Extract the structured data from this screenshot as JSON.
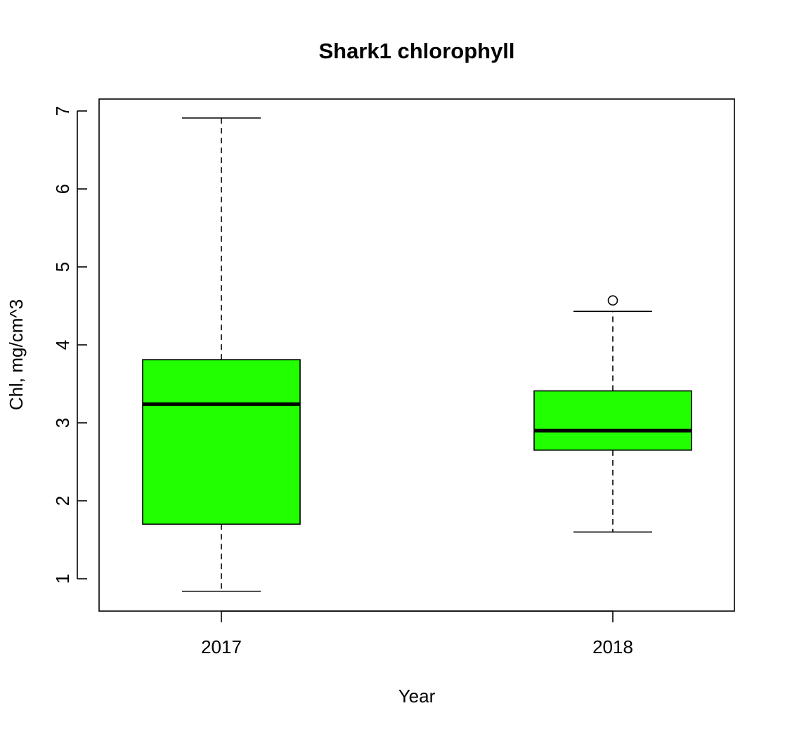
{
  "chart_data": {
    "type": "boxplot",
    "title": "Shark1 chlorophyll",
    "xlabel": "Year",
    "ylabel": "Chl, mg/cm^3",
    "categories": [
      "2017",
      "2018"
    ],
    "ylim": [
      0.6,
      7.15
    ],
    "yticks": [
      1,
      2,
      3,
      4,
      5,
      6,
      7
    ],
    "ytick_labels": [
      "1",
      "2",
      "3",
      "4",
      "5",
      "6",
      "7"
    ],
    "grid": false,
    "legend": "none",
    "box_color": "#22ff00",
    "series": [
      {
        "category": "2017",
        "whisker_low": 0.84,
        "q1": 1.7,
        "median": 3.24,
        "q3": 3.81,
        "whisker_high": 6.91,
        "outliers": []
      },
      {
        "category": "2018",
        "whisker_low": 1.6,
        "q1": 2.65,
        "median": 2.9,
        "q3": 3.41,
        "whisker_high": 4.43,
        "outliers": [
          4.57
        ]
      }
    ]
  }
}
